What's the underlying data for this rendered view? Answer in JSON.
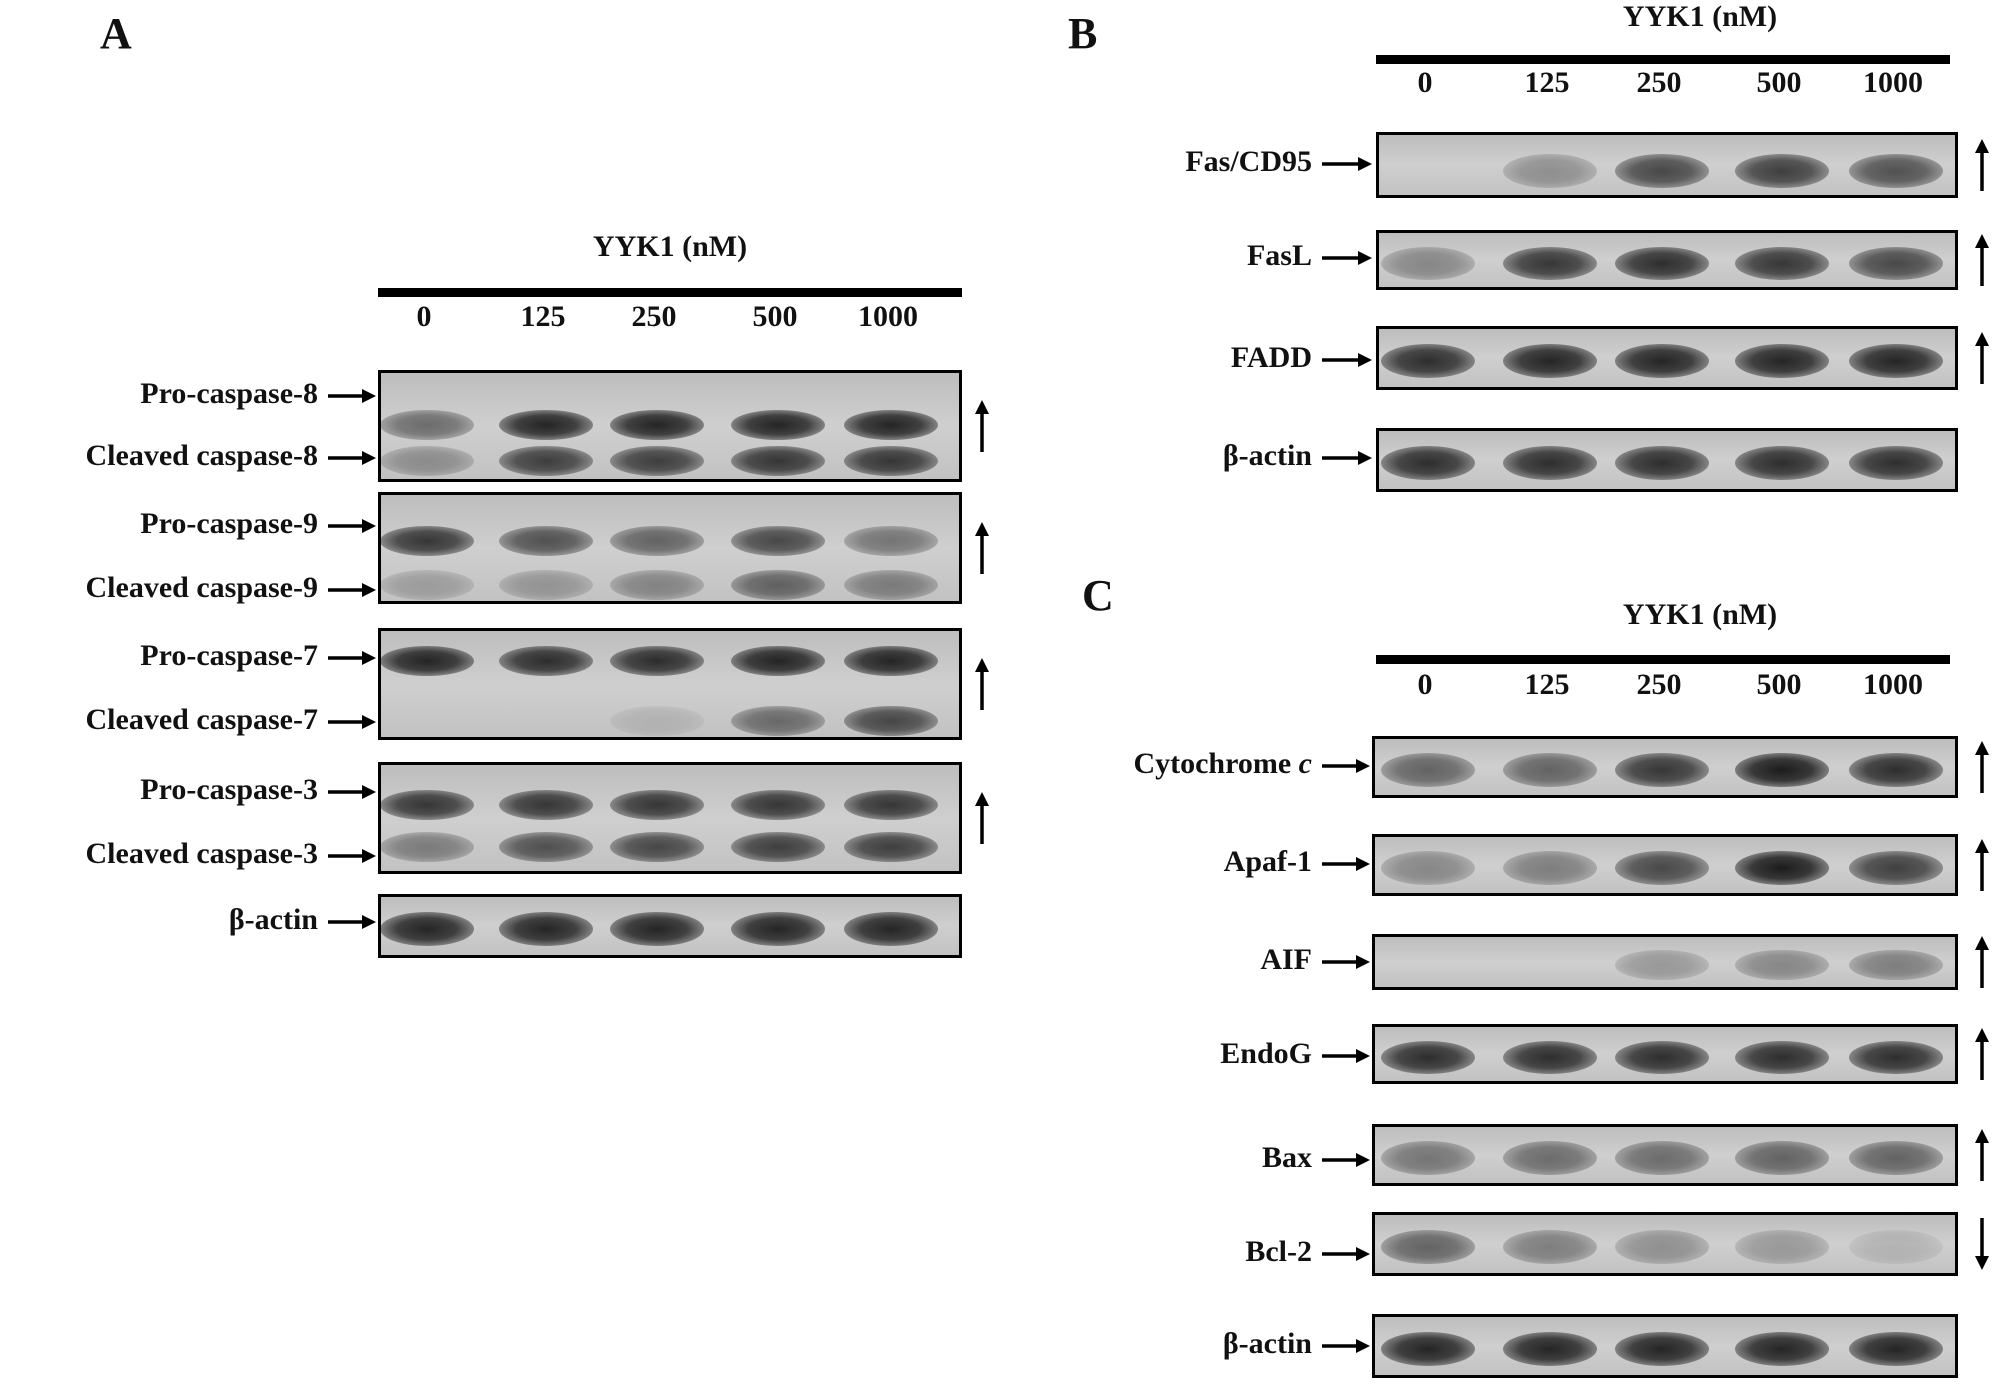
{
  "doses": [
    "0",
    "125",
    "250",
    "500",
    "1000"
  ],
  "panelA": {
    "letter": "A",
    "treatment_title": "YYK1 (nM)",
    "blots": [
      {
        "labels": [
          "Pro-caspase-8",
          "Cleaved caspase-8"
        ],
        "trend": "up",
        "bands": [
          [
            0.55,
            0.95,
            0.95,
            0.95,
            0.95
          ],
          [
            0.35,
            0.8,
            0.8,
            0.85,
            0.85
          ]
        ]
      },
      {
        "labels": [
          "Pro-caspase-9",
          "Cleaved caspase-9"
        ],
        "trend": "up",
        "bands": [
          [
            0.85,
            0.7,
            0.6,
            0.75,
            0.5
          ],
          [
            0.25,
            0.3,
            0.4,
            0.6,
            0.45
          ]
        ]
      },
      {
        "labels": [
          "Pro-caspase-7",
          "Cleaved caspase-7"
        ],
        "trend": "up",
        "bands": [
          [
            0.95,
            0.9,
            0.9,
            0.95,
            0.95
          ],
          [
            0.05,
            0.05,
            0.1,
            0.55,
            0.75
          ]
        ]
      },
      {
        "labels": [
          "Pro-caspase-3",
          "Cleaved caspase-3"
        ],
        "trend": "up",
        "bands": [
          [
            0.85,
            0.85,
            0.85,
            0.85,
            0.85
          ],
          [
            0.45,
            0.7,
            0.75,
            0.8,
            0.8
          ]
        ]
      },
      {
        "labels": [
          "β-actin"
        ],
        "trend": "",
        "bands": [
          [
            0.95,
            0.95,
            0.95,
            0.95,
            0.95
          ]
        ]
      }
    ]
  },
  "panelB": {
    "letter": "B",
    "treatment_title": "YYK1 (nM)",
    "blots": [
      {
        "labels": [
          "Fas/CD95"
        ],
        "trend": "up",
        "bands": [
          [
            0.05,
            0.35,
            0.75,
            0.8,
            0.7
          ]
        ]
      },
      {
        "labels": [
          "FasL"
        ],
        "trend": "up",
        "bands": [
          [
            0.4,
            0.85,
            0.9,
            0.85,
            0.75
          ]
        ]
      },
      {
        "labels": [
          "FADD"
        ],
        "trend": "up",
        "bands": [
          [
            0.9,
            0.95,
            0.95,
            0.95,
            0.95
          ]
        ]
      },
      {
        "labels": [
          "β-actin"
        ],
        "trend": "",
        "bands": [
          [
            0.9,
            0.9,
            0.9,
            0.9,
            0.9
          ]
        ]
      }
    ]
  },
  "panelC": {
    "letter": "C",
    "treatment_title": "YYK1 (nM)",
    "blots": [
      {
        "labels": [
          "Cytochrome ",
          "c"
        ],
        "label_italic_suffix": true,
        "trend": "up",
        "bands": [
          [
            0.6,
            0.6,
            0.85,
            1.0,
            0.9
          ]
        ]
      },
      {
        "labels": [
          "Apaf-1"
        ],
        "trend": "up",
        "bands": [
          [
            0.4,
            0.45,
            0.75,
            1.0,
            0.8
          ]
        ]
      },
      {
        "labels": [
          "AIF"
        ],
        "trend": "up",
        "bands": [
          [
            0.05,
            0.05,
            0.3,
            0.4,
            0.45
          ]
        ]
      },
      {
        "labels": [
          "EndoG"
        ],
        "trend": "up",
        "bands": [
          [
            0.9,
            0.9,
            0.9,
            0.9,
            0.9
          ]
        ]
      },
      {
        "labels": [
          "Bax"
        ],
        "trend": "up",
        "bands": [
          [
            0.5,
            0.55,
            0.55,
            0.6,
            0.6
          ]
        ]
      },
      {
        "labels": [
          "Bcl-2"
        ],
        "trend": "down",
        "bands": [
          [
            0.6,
            0.45,
            0.35,
            0.3,
            0.15
          ]
        ]
      },
      {
        "labels": [
          "β-actin"
        ],
        "trend": "",
        "bands": [
          [
            0.95,
            0.95,
            0.95,
            0.95,
            0.95
          ]
        ]
      }
    ]
  }
}
